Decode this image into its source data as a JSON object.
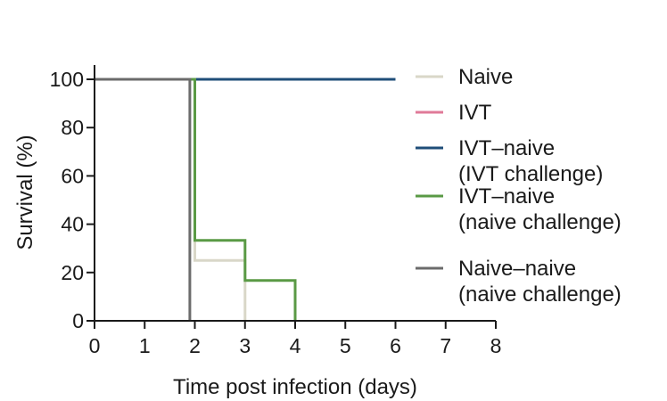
{
  "chart_data": {
    "type": "line",
    "step": true,
    "title": "",
    "xlabel": "Time post infection (days)",
    "ylabel": "Survival (%)",
    "xlim": [
      0,
      8
    ],
    "ylim": [
      0,
      100
    ],
    "xticks": [
      0,
      1,
      2,
      3,
      4,
      5,
      6,
      7,
      8
    ],
    "yticks": [
      0,
      20,
      40,
      60,
      80,
      100
    ],
    "grid": false,
    "legend_position": "right",
    "series": [
      {
        "name": "Naive",
        "color": "#d9d7c8",
        "x": [
          0,
          2,
          2,
          3,
          3
        ],
        "y": [
          100,
          100,
          25,
          25,
          0
        ]
      },
      {
        "name": "IVT",
        "color": "#e07a98",
        "x": [
          0,
          6
        ],
        "y": [
          100,
          100
        ]
      },
      {
        "name": "IVT–naive\n(IVT challenge)",
        "color": "#1f4e79",
        "x": [
          2,
          6
        ],
        "y": [
          100,
          100
        ]
      },
      {
        "name": "IVT–naive\n(naive challenge)",
        "color": "#5a9a45",
        "x": [
          0,
          2,
          2,
          3,
          3,
          4,
          4
        ],
        "y": [
          100,
          100,
          33.3,
          33.3,
          16.7,
          16.7,
          0
        ]
      },
      {
        "name": "Naive–naive\n(naive challenge)",
        "color": "#6b6b6b",
        "x": [
          0,
          1.9,
          1.9
        ],
        "y": [
          100,
          100,
          0
        ]
      }
    ]
  }
}
